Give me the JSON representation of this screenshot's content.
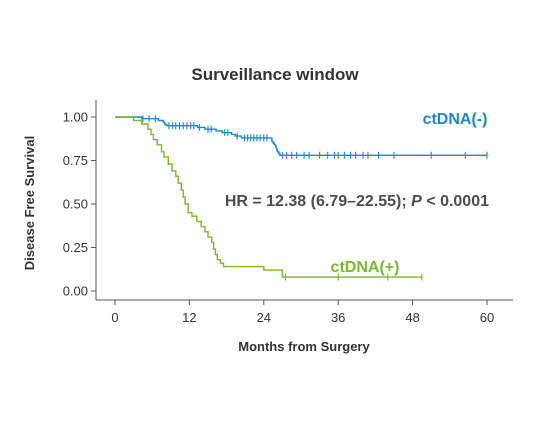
{
  "chart_data": {
    "type": "line",
    "subtype": "kaplan-meier",
    "title": "Surveillance window",
    "xlabel": "Months from Surgery",
    "ylabel": "Disease Free Survival",
    "xlim": [
      0,
      60
    ],
    "ylim": [
      0,
      1
    ],
    "xticks": [
      0,
      12,
      24,
      36,
      48,
      60
    ],
    "yticks": [
      0.0,
      0.25,
      0.5,
      0.75,
      1.0
    ],
    "ytick_labels": [
      "0.00",
      "0.25",
      "0.50",
      "0.75",
      "1.00"
    ],
    "grid": false,
    "annotation": {
      "hr_text": "HR = 12.38 (6.79–22.55); ",
      "p_symbol": "P",
      "p_text": " < 0.0001"
    },
    "series": [
      {
        "name": "ctDNA(-)",
        "color": "#1a88c9",
        "steps": [
          [
            0,
            1.0
          ],
          [
            4,
            1.0
          ],
          [
            4.3,
            0.99
          ],
          [
            6.9,
            0.99
          ],
          [
            7.0,
            0.98
          ],
          [
            7.8,
            0.97
          ],
          [
            8.0,
            0.96
          ],
          [
            8.2,
            0.955
          ],
          [
            8.4,
            0.95
          ],
          [
            13.0,
            0.95
          ],
          [
            13.3,
            0.94
          ],
          [
            14.0,
            0.94
          ],
          [
            14.5,
            0.93
          ],
          [
            16.0,
            0.93
          ],
          [
            16.3,
            0.92
          ],
          [
            17.0,
            0.92
          ],
          [
            17.3,
            0.91
          ],
          [
            18.5,
            0.91
          ],
          [
            18.8,
            0.9
          ],
          [
            19.0,
            0.9
          ],
          [
            19.4,
            0.89
          ],
          [
            20.2,
            0.89
          ],
          [
            20.4,
            0.88
          ],
          [
            25.0,
            0.88
          ],
          [
            25.3,
            0.86
          ],
          [
            25.5,
            0.85
          ],
          [
            25.7,
            0.84
          ],
          [
            25.9,
            0.83
          ],
          [
            26.0,
            0.82
          ],
          [
            26.1,
            0.81
          ],
          [
            26.2,
            0.8
          ],
          [
            26.4,
            0.79
          ],
          [
            26.6,
            0.78
          ],
          [
            60,
            0.78
          ]
        ],
        "censors": [
          [
            4.5,
            0.99
          ],
          [
            5.5,
            0.99
          ],
          [
            6.5,
            0.99
          ],
          [
            8.7,
            0.95
          ],
          [
            9.3,
            0.95
          ],
          [
            9.8,
            0.95
          ],
          [
            10.4,
            0.95
          ],
          [
            11.0,
            0.95
          ],
          [
            11.6,
            0.95
          ],
          [
            12.2,
            0.95
          ],
          [
            12.7,
            0.95
          ],
          [
            13.6,
            0.94
          ],
          [
            15.0,
            0.93
          ],
          [
            15.5,
            0.93
          ],
          [
            17.7,
            0.91
          ],
          [
            18.2,
            0.91
          ],
          [
            19.7,
            0.89
          ],
          [
            20.9,
            0.88
          ],
          [
            21.4,
            0.88
          ],
          [
            21.9,
            0.88
          ],
          [
            22.4,
            0.88
          ],
          [
            22.9,
            0.88
          ],
          [
            23.4,
            0.88
          ],
          [
            24.0,
            0.88
          ],
          [
            24.5,
            0.88
          ],
          [
            27.0,
            0.78
          ],
          [
            27.7,
            0.78
          ],
          [
            28.5,
            0.78
          ],
          [
            29.3,
            0.78
          ],
          [
            30.5,
            0.78
          ],
          [
            31.3,
            0.78
          ],
          [
            33.0,
            0.78
          ],
          [
            34.3,
            0.78
          ],
          [
            35.4,
            0.78
          ],
          [
            36.0,
            0.78
          ],
          [
            37.0,
            0.78
          ],
          [
            38.0,
            0.78
          ],
          [
            38.8,
            0.78
          ],
          [
            40.0,
            0.78
          ],
          [
            40.8,
            0.78
          ],
          [
            42.5,
            0.78
          ],
          [
            45.0,
            0.78
          ],
          [
            51.0,
            0.78
          ],
          [
            56.5,
            0.78
          ],
          [
            60.0,
            0.78
          ]
        ]
      },
      {
        "name": "ctDNA(+)",
        "color": "#7ab92d",
        "steps": [
          [
            0,
            1.0
          ],
          [
            3.0,
            1.0
          ],
          [
            3.0,
            0.98
          ],
          [
            4.3,
            0.98
          ],
          [
            4.3,
            0.96
          ],
          [
            5.3,
            0.96
          ],
          [
            5.3,
            0.93
          ],
          [
            5.8,
            0.93
          ],
          [
            5.8,
            0.9
          ],
          [
            6.2,
            0.9
          ],
          [
            6.2,
            0.87
          ],
          [
            6.8,
            0.87
          ],
          [
            6.8,
            0.84
          ],
          [
            7.5,
            0.84
          ],
          [
            7.5,
            0.8
          ],
          [
            7.9,
            0.8
          ],
          [
            7.9,
            0.77
          ],
          [
            8.6,
            0.77
          ],
          [
            8.6,
            0.73
          ],
          [
            9.2,
            0.73
          ],
          [
            9.2,
            0.69
          ],
          [
            9.8,
            0.69
          ],
          [
            9.8,
            0.66
          ],
          [
            10.2,
            0.66
          ],
          [
            10.2,
            0.62
          ],
          [
            10.7,
            0.62
          ],
          [
            10.7,
            0.58
          ],
          [
            11.0,
            0.58
          ],
          [
            11.0,
            0.54
          ],
          [
            11.3,
            0.54
          ],
          [
            11.3,
            0.5
          ],
          [
            11.8,
            0.5
          ],
          [
            11.8,
            0.45
          ],
          [
            12.4,
            0.45
          ],
          [
            12.4,
            0.43
          ],
          [
            13.2,
            0.43
          ],
          [
            13.2,
            0.4
          ],
          [
            13.9,
            0.4
          ],
          [
            13.9,
            0.37
          ],
          [
            14.5,
            0.37
          ],
          [
            14.5,
            0.34
          ],
          [
            15.0,
            0.34
          ],
          [
            15.0,
            0.31
          ],
          [
            15.6,
            0.31
          ],
          [
            15.6,
            0.28
          ],
          [
            15.9,
            0.28
          ],
          [
            15.9,
            0.24
          ],
          [
            16.2,
            0.24
          ],
          [
            16.2,
            0.21
          ],
          [
            16.5,
            0.21
          ],
          [
            16.5,
            0.18
          ],
          [
            17.0,
            0.18
          ],
          [
            17.0,
            0.16
          ],
          [
            17.5,
            0.16
          ],
          [
            17.5,
            0.14
          ],
          [
            24.0,
            0.14
          ],
          [
            24.0,
            0.12
          ],
          [
            27.0,
            0.12
          ],
          [
            27.0,
            0.08
          ],
          [
            49.5,
            0.08
          ]
        ],
        "censors": [
          [
            27.5,
            0.08
          ],
          [
            36.0,
            0.08
          ],
          [
            44.0,
            0.08
          ],
          [
            49.5,
            0.08
          ]
        ]
      }
    ]
  }
}
